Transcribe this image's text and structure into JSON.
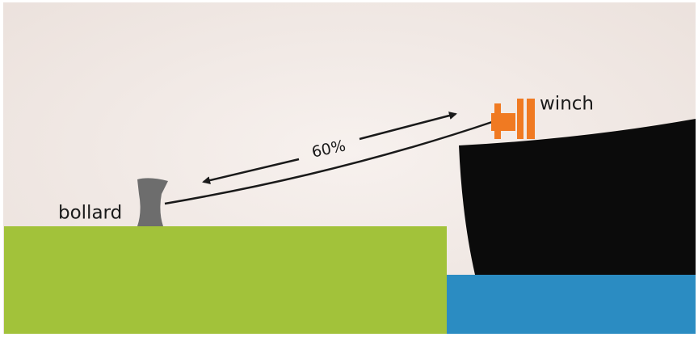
{
  "labels": {
    "bollard": "bollard",
    "winch": "winch",
    "load": "60%"
  }
}
